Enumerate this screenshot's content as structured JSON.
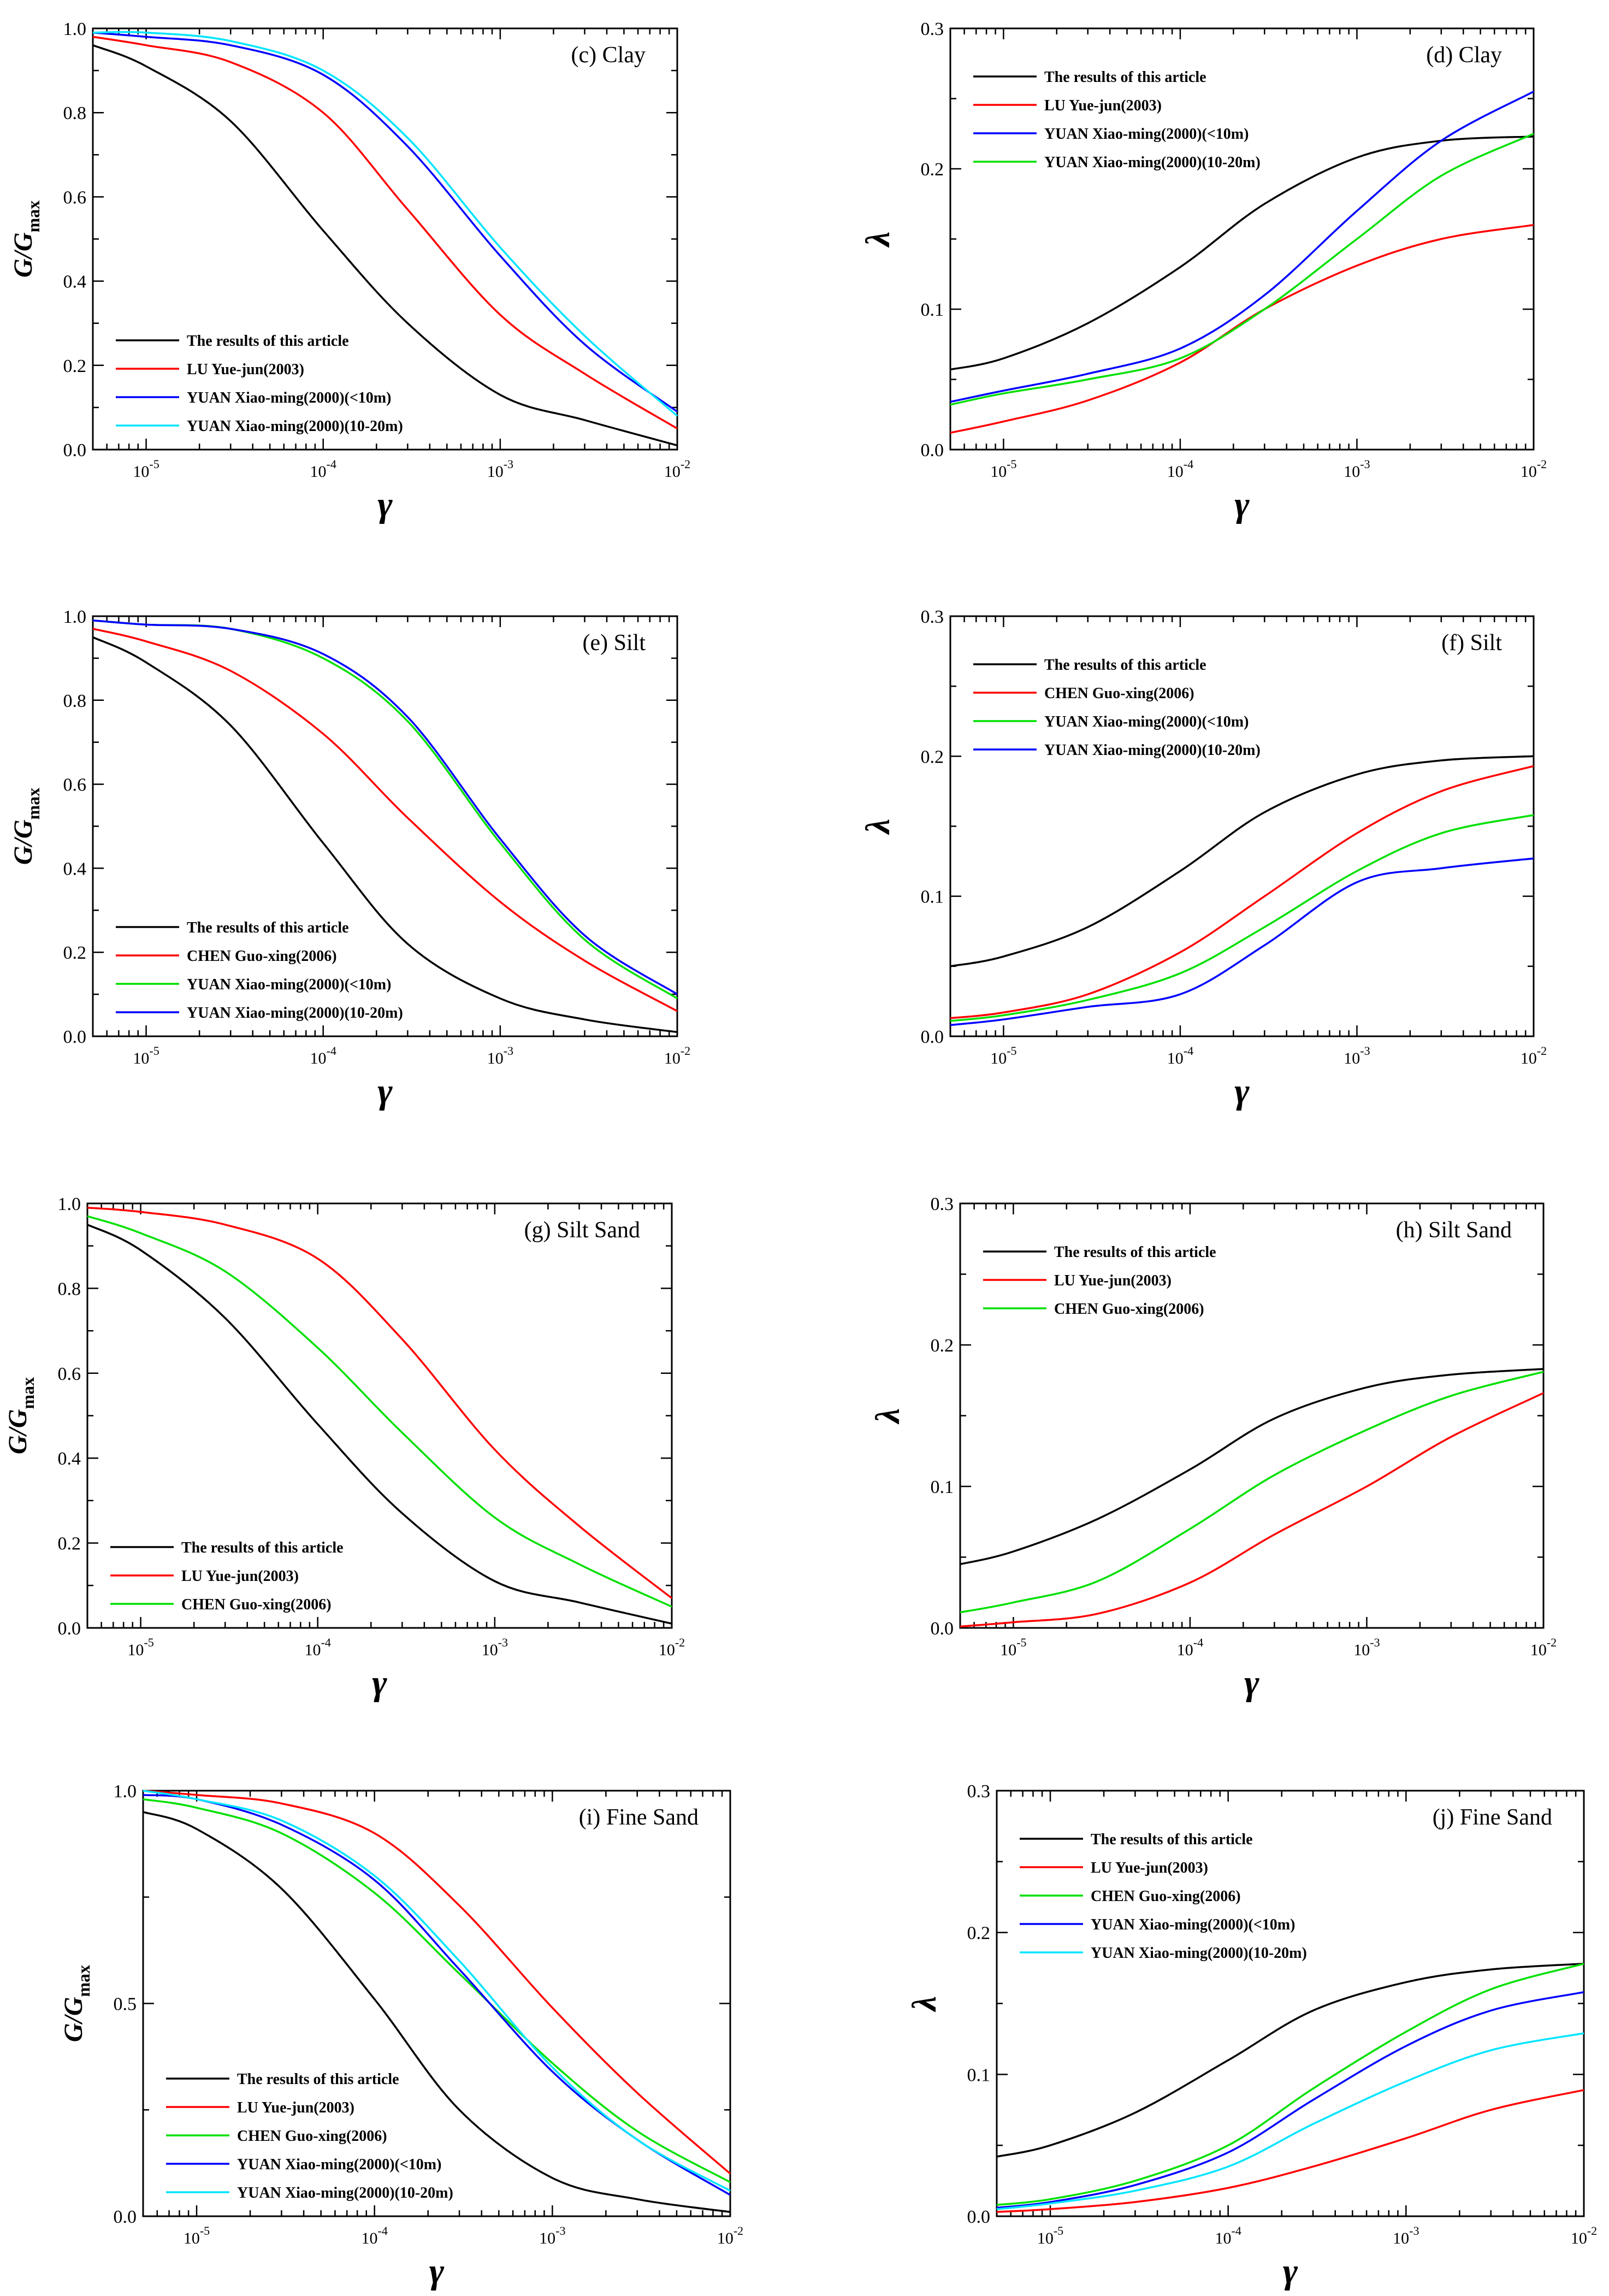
{
  "colors": {
    "black": "#000000",
    "red": "#ff0000",
    "blue": "#0000ff",
    "green": "#00e000",
    "cyan": "#00e5ff"
  },
  "chart_data": [
    {
      "id": "c",
      "type": "line",
      "kind": "G",
      "title": "(c) Clay",
      "xlabel": "γ",
      "ylabel": "G/Gmax",
      "xscale": "log",
      "xlim": [
        5e-06,
        0.01
      ],
      "ylim": [
        0,
        1.0
      ],
      "xticks": [
        "10-5",
        "10-4",
        "10-3",
        "10-2"
      ],
      "yticks": [
        "0.0",
        "0.2",
        "0.4",
        "0.6",
        "0.8",
        "1.0"
      ],
      "legend_position": "bottom-left",
      "series": [
        {
          "name": "The results of this article",
          "color": "black",
          "x": [
            5e-06,
            1e-05,
            3e-05,
            0.0001,
            0.0003,
            0.001,
            0.003,
            0.01
          ],
          "y": [
            0.96,
            0.91,
            0.78,
            0.52,
            0.3,
            0.13,
            0.07,
            0.01
          ]
        },
        {
          "name": "LU Yue-jun(2003)",
          "color": "red",
          "x": [
            5e-06,
            1e-05,
            3e-05,
            0.0001,
            0.0003,
            0.001,
            0.003,
            0.01
          ],
          "y": [
            0.98,
            0.96,
            0.92,
            0.8,
            0.57,
            0.32,
            0.18,
            0.05
          ]
        },
        {
          "name": "YUAN Xiao-ming(2000)(<10m)",
          "color": "blue",
          "x": [
            5e-06,
            1e-05,
            3e-05,
            0.0001,
            0.0003,
            0.001,
            0.003,
            0.01
          ],
          "y": [
            0.99,
            0.98,
            0.96,
            0.89,
            0.72,
            0.46,
            0.25,
            0.09
          ]
        },
        {
          "name": "YUAN Xiao-ming(2000)(10-20m)",
          "color": "cyan",
          "x": [
            5e-06,
            1e-05,
            3e-05,
            0.0001,
            0.0003,
            0.001,
            0.003,
            0.01
          ],
          "y": [
            0.99,
            0.99,
            0.97,
            0.9,
            0.74,
            0.48,
            0.27,
            0.08
          ]
        }
      ]
    },
    {
      "id": "d",
      "type": "line",
      "kind": "L",
      "title": "(d) Clay",
      "xlabel": "γ",
      "ylabel": "λ",
      "xscale": "log",
      "xlim": [
        5e-06,
        0.01
      ],
      "ylim": [
        0,
        0.3
      ],
      "xticks": [
        "10-5",
        "10-4",
        "10-3",
        "10-2"
      ],
      "yticks": [
        "0.0",
        "0.1",
        "0.2",
        "0.3"
      ],
      "legend_position": "top-left",
      "series": [
        {
          "name": "The results of this article",
          "color": "black",
          "x": [
            5e-06,
            1e-05,
            3e-05,
            0.0001,
            0.0003,
            0.001,
            0.003,
            0.01
          ],
          "y": [
            0.057,
            0.065,
            0.09,
            0.13,
            0.175,
            0.208,
            0.22,
            0.223
          ]
        },
        {
          "name": "LU Yue-jun(2003)",
          "color": "red",
          "x": [
            5e-06,
            1e-05,
            3e-05,
            0.0001,
            0.0003,
            0.001,
            0.003,
            0.01
          ],
          "y": [
            0.012,
            0.02,
            0.035,
            0.062,
            0.1,
            0.131,
            0.15,
            0.16
          ]
        },
        {
          "name": "YUAN Xiao-ming(2000)(<10m)",
          "color": "blue",
          "x": [
            5e-06,
            1e-05,
            3e-05,
            0.0001,
            0.0003,
            0.001,
            0.003,
            0.01
          ],
          "y": [
            0.034,
            0.042,
            0.054,
            0.072,
            0.11,
            0.17,
            0.22,
            0.255
          ]
        },
        {
          "name": "YUAN Xiao-ming(2000)(10-20m)",
          "color": "green",
          "x": [
            5e-06,
            1e-05,
            3e-05,
            0.0001,
            0.0003,
            0.001,
            0.003,
            0.01
          ],
          "y": [
            0.032,
            0.04,
            0.05,
            0.065,
            0.1,
            0.15,
            0.195,
            0.225
          ]
        }
      ]
    },
    {
      "id": "e",
      "type": "line",
      "kind": "G",
      "title": "(e) Silt",
      "xlabel": "γ",
      "ylabel": "G/Gmax",
      "xscale": "log",
      "xlim": [
        5e-06,
        0.01
      ],
      "ylim": [
        0,
        1.0
      ],
      "xticks": [
        "10-5",
        "10-4",
        "10-3",
        "10-2"
      ],
      "yticks": [
        "0.0",
        "0.2",
        "0.4",
        "0.6",
        "0.8",
        "1.0"
      ],
      "legend_position": "bottom-left",
      "series": [
        {
          "name": "The results of this article",
          "color": "black",
          "x": [
            5e-06,
            1e-05,
            3e-05,
            0.0001,
            0.0003,
            0.001,
            0.003,
            0.01
          ],
          "y": [
            0.95,
            0.89,
            0.74,
            0.46,
            0.22,
            0.09,
            0.04,
            0.01
          ]
        },
        {
          "name": "CHEN Guo-xing(2006)",
          "color": "red",
          "x": [
            5e-06,
            1e-05,
            3e-05,
            0.0001,
            0.0003,
            0.001,
            0.003,
            0.01
          ],
          "y": [
            0.97,
            0.94,
            0.87,
            0.72,
            0.52,
            0.32,
            0.18,
            0.06
          ]
        },
        {
          "name": "YUAN Xiao-ming(2000)(<10m)",
          "color": "green",
          "x": [
            5e-06,
            1e-05,
            3e-05,
            0.0001,
            0.0003,
            0.001,
            0.003,
            0.01
          ],
          "y": [
            0.99,
            0.98,
            0.97,
            0.9,
            0.75,
            0.46,
            0.23,
            0.09
          ]
        },
        {
          "name": "YUAN Xiao-ming(2000)(10-20m)",
          "color": "blue",
          "x": [
            5e-06,
            1e-05,
            3e-05,
            0.0001,
            0.0003,
            0.001,
            0.003,
            0.01
          ],
          "y": [
            0.99,
            0.98,
            0.97,
            0.91,
            0.76,
            0.47,
            0.24,
            0.1
          ]
        }
      ]
    },
    {
      "id": "f",
      "type": "line",
      "kind": "L",
      "title": "(f) Silt",
      "xlabel": "γ",
      "ylabel": "λ",
      "xscale": "log",
      "xlim": [
        5e-06,
        0.01
      ],
      "ylim": [
        0,
        0.3
      ],
      "xticks": [
        "10-5",
        "10-4",
        "10-3",
        "10-2"
      ],
      "yticks": [
        "0.0",
        "0.1",
        "0.2",
        "0.3"
      ],
      "legend_position": "top-left",
      "series": [
        {
          "name": "The results of this article",
          "color": "black",
          "x": [
            5e-06,
            1e-05,
            3e-05,
            0.0001,
            0.0003,
            0.001,
            0.003,
            0.01
          ],
          "y": [
            0.05,
            0.057,
            0.078,
            0.118,
            0.16,
            0.187,
            0.197,
            0.2
          ]
        },
        {
          "name": "CHEN Guo-xing(2006)",
          "color": "red",
          "x": [
            5e-06,
            1e-05,
            3e-05,
            0.0001,
            0.0003,
            0.001,
            0.003,
            0.01
          ],
          "y": [
            0.013,
            0.017,
            0.03,
            0.06,
            0.1,
            0.145,
            0.175,
            0.193
          ]
        },
        {
          "name": "YUAN Xiao-ming(2000)(<10m)",
          "color": "green",
          "x": [
            5e-06,
            1e-05,
            3e-05,
            0.0001,
            0.0003,
            0.001,
            0.003,
            0.01
          ],
          "y": [
            0.011,
            0.015,
            0.026,
            0.045,
            0.078,
            0.118,
            0.145,
            0.158
          ]
        },
        {
          "name": "YUAN Xiao-ming(2000)(10-20m)",
          "color": "blue",
          "x": [
            5e-06,
            1e-05,
            3e-05,
            0.0001,
            0.0003,
            0.001,
            0.003,
            0.01
          ],
          "y": [
            0.008,
            0.012,
            0.021,
            0.03,
            0.065,
            0.11,
            0.12,
            0.127
          ]
        }
      ]
    },
    {
      "id": "g",
      "type": "line",
      "kind": "G",
      "title": "(g) Silt Sand",
      "xlabel": "γ",
      "ylabel": "G/Gmax",
      "xscale": "log",
      "xlim": [
        5e-06,
        0.01
      ],
      "ylim": [
        0,
        1.0
      ],
      "xticks": [
        "10-5",
        "10-4",
        "10-3",
        "10-2"
      ],
      "yticks": [
        "0.0",
        "0.2",
        "0.4",
        "0.6",
        "0.8",
        "1.0"
      ],
      "legend_position": "bottom-left",
      "series": [
        {
          "name": "The results of this article",
          "color": "black",
          "x": [
            5e-06,
            1e-05,
            3e-05,
            0.0001,
            0.0003,
            0.001,
            0.003,
            0.01
          ],
          "y": [
            0.95,
            0.89,
            0.73,
            0.48,
            0.27,
            0.11,
            0.06,
            0.01
          ]
        },
        {
          "name": "LU Yue-jun(2003)",
          "color": "red",
          "x": [
            5e-06,
            1e-05,
            3e-05,
            0.0001,
            0.0003,
            0.001,
            0.003,
            0.01
          ],
          "y": [
            0.99,
            0.98,
            0.95,
            0.87,
            0.68,
            0.42,
            0.24,
            0.07
          ]
        },
        {
          "name": "CHEN Guo-xing(2006)",
          "color": "green",
          "x": [
            5e-06,
            1e-05,
            3e-05,
            0.0001,
            0.0003,
            0.001,
            0.003,
            0.01
          ],
          "y": [
            0.97,
            0.93,
            0.84,
            0.66,
            0.46,
            0.26,
            0.15,
            0.05
          ]
        }
      ]
    },
    {
      "id": "h",
      "type": "line",
      "kind": "L",
      "title": "(h) Silt Sand",
      "xlabel": "γ",
      "ylabel": "λ",
      "xscale": "log",
      "xlim": [
        5e-06,
        0.01
      ],
      "ylim": [
        0,
        0.3
      ],
      "xticks": [
        "10-5",
        "10-4",
        "10-3",
        "10-2"
      ],
      "yticks": [
        "0.0",
        "0.1",
        "0.2",
        "0.3"
      ],
      "legend_position": "top-left",
      "series": [
        {
          "name": "The results of this article",
          "color": "black",
          "x": [
            5e-06,
            1e-05,
            3e-05,
            0.0001,
            0.0003,
            0.001,
            0.003,
            0.01
          ],
          "y": [
            0.045,
            0.054,
            0.077,
            0.112,
            0.148,
            0.17,
            0.179,
            0.183
          ]
        },
        {
          "name": "LU Yue-jun(2003)",
          "color": "red",
          "x": [
            5e-06,
            1e-05,
            3e-05,
            0.0001,
            0.0003,
            0.001,
            0.003,
            0.01
          ],
          "y": [
            0.001,
            0.004,
            0.01,
            0.032,
            0.066,
            0.1,
            0.135,
            0.166
          ]
        },
        {
          "name": "CHEN Guo-xing(2006)",
          "color": "green",
          "x": [
            5e-06,
            1e-05,
            3e-05,
            0.0001,
            0.0003,
            0.001,
            0.003,
            0.01
          ],
          "y": [
            0.011,
            0.018,
            0.033,
            0.07,
            0.108,
            0.14,
            0.164,
            0.181
          ]
        }
      ]
    },
    {
      "id": "i",
      "type": "line",
      "kind": "G",
      "title": "(i) Fine Sand",
      "xlabel": "γ",
      "ylabel": "G/Gmax",
      "xscale": "log",
      "xlim": [
        5e-06,
        0.01
      ],
      "ylim": [
        0,
        1.0
      ],
      "xticks": [
        "10-5",
        "10-4",
        "10-3",
        "10-2"
      ],
      "yticks": [
        "0.0",
        "0.5",
        "1.0"
      ],
      "legend_position": "bottom-left",
      "series": [
        {
          "name": "The results of this article",
          "color": "black",
          "x": [
            5e-06,
            1e-05,
            3e-05,
            0.0001,
            0.0003,
            0.001,
            0.003,
            0.01
          ],
          "y": [
            0.95,
            0.91,
            0.77,
            0.51,
            0.25,
            0.09,
            0.04,
            0.01
          ]
        },
        {
          "name": "LU Yue-jun(2003)",
          "color": "red",
          "x": [
            5e-06,
            1e-05,
            3e-05,
            0.0001,
            0.0003,
            0.001,
            0.003,
            0.01
          ],
          "y": [
            1.0,
            0.99,
            0.97,
            0.9,
            0.73,
            0.49,
            0.29,
            0.1
          ]
        },
        {
          "name": "CHEN Guo-xing(2006)",
          "color": "green",
          "x": [
            5e-06,
            1e-05,
            3e-05,
            0.0001,
            0.0003,
            0.001,
            0.003,
            0.01
          ],
          "y": [
            0.98,
            0.96,
            0.9,
            0.76,
            0.57,
            0.36,
            0.2,
            0.08
          ]
        },
        {
          "name": "YUAN Xiao-ming(2000)(<10m)",
          "color": "blue",
          "x": [
            5e-06,
            1e-05,
            3e-05,
            0.0001,
            0.0003,
            0.001,
            0.003,
            0.01
          ],
          "y": [
            0.99,
            0.98,
            0.92,
            0.79,
            0.58,
            0.34,
            0.18,
            0.05
          ]
        },
        {
          "name": "YUAN Xiao-ming(2000)(10-20m)",
          "color": "cyan",
          "x": [
            5e-06,
            1e-05,
            3e-05,
            0.0001,
            0.0003,
            0.001,
            0.003,
            0.01
          ],
          "y": [
            1.0,
            0.98,
            0.93,
            0.8,
            0.6,
            0.35,
            0.18,
            0.06
          ]
        }
      ]
    },
    {
      "id": "j",
      "type": "line",
      "kind": "L",
      "title": "(j) Fine Sand",
      "xlabel": "γ",
      "ylabel": "λ",
      "xscale": "log",
      "xlim": [
        5e-06,
        0.01
      ],
      "ylim": [
        0,
        0.3
      ],
      "xticks": [
        "10-5",
        "10-4",
        "10-3",
        "10-2"
      ],
      "yticks": [
        "0.0",
        "0.1",
        "0.2",
        "0.3"
      ],
      "legend_position": "top-left",
      "series": [
        {
          "name": "The results of this article",
          "color": "black",
          "x": [
            5e-06,
            1e-05,
            3e-05,
            0.0001,
            0.0003,
            0.001,
            0.003,
            0.01
          ],
          "y": [
            0.042,
            0.05,
            0.073,
            0.11,
            0.145,
            0.165,
            0.174,
            0.178
          ]
        },
        {
          "name": "LU Yue-jun(2003)",
          "color": "red",
          "x": [
            5e-06,
            1e-05,
            3e-05,
            0.0001,
            0.0003,
            0.001,
            0.003,
            0.01
          ],
          "y": [
            0.003,
            0.005,
            0.01,
            0.02,
            0.035,
            0.055,
            0.075,
            0.089
          ]
        },
        {
          "name": "CHEN Guo-xing(2006)",
          "color": "green",
          "x": [
            5e-06,
            1e-05,
            3e-05,
            0.0001,
            0.0003,
            0.001,
            0.003,
            0.01
          ],
          "y": [
            0.008,
            0.012,
            0.025,
            0.05,
            0.09,
            0.13,
            0.16,
            0.178
          ]
        },
        {
          "name": "YUAN Xiao-ming(2000)(<10m)",
          "color": "blue",
          "x": [
            5e-06,
            1e-05,
            3e-05,
            0.0001,
            0.0003,
            0.001,
            0.003,
            0.01
          ],
          "y": [
            0.006,
            0.01,
            0.022,
            0.045,
            0.082,
            0.12,
            0.145,
            0.158
          ]
        },
        {
          "name": "YUAN Xiao-ming(2000)(10-20m)",
          "color": "cyan",
          "x": [
            5e-06,
            1e-05,
            3e-05,
            0.0001,
            0.0003,
            0.001,
            0.003,
            0.01
          ],
          "y": [
            0.005,
            0.009,
            0.018,
            0.035,
            0.065,
            0.095,
            0.117,
            0.129
          ]
        }
      ]
    }
  ]
}
